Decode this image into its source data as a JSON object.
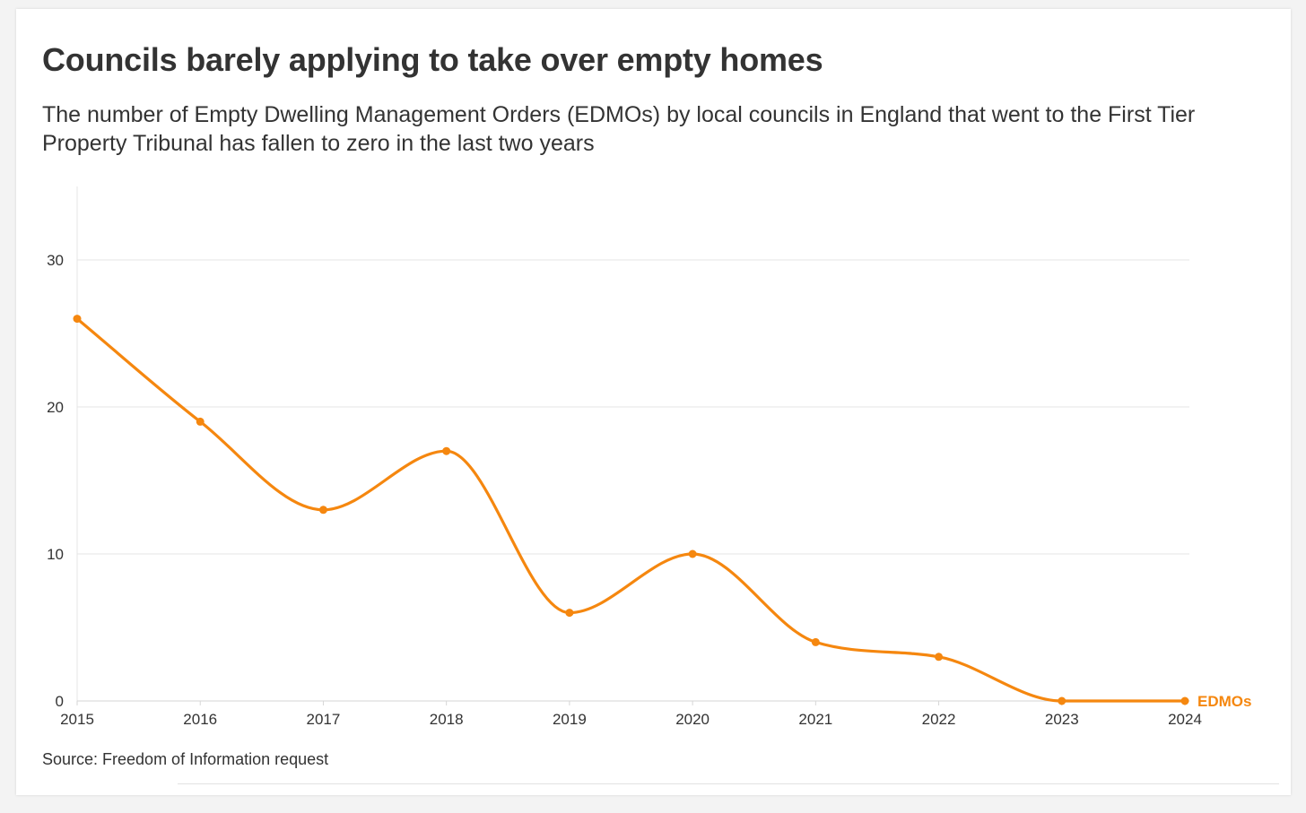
{
  "colors": {
    "series": "#f5870f",
    "grid": "#e6e6e6",
    "text": "#333333"
  },
  "chart_data": {
    "type": "line",
    "title": "Councils barely applying to take over empty homes",
    "subtitle": "The number of Empty Dwelling Management Orders (EDMOs) by local councils in England that went to the First Tier Property Tribunal has fallen to zero in the last two years",
    "x": [
      "2015",
      "2016",
      "2017",
      "2018",
      "2019",
      "2020",
      "2021",
      "2022",
      "2023",
      "2024"
    ],
    "series": [
      {
        "name": "EDMOs",
        "values": [
          26,
          19,
          13,
          17,
          6,
          10,
          4,
          3,
          0,
          0
        ]
      }
    ],
    "yticks": [
      0,
      10,
      20,
      30
    ],
    "ylim": [
      0,
      35
    ],
    "xlabel": "",
    "ylabel": "",
    "grid": true,
    "legend": "inline-end",
    "source": "Source: Freedom of Information request"
  }
}
